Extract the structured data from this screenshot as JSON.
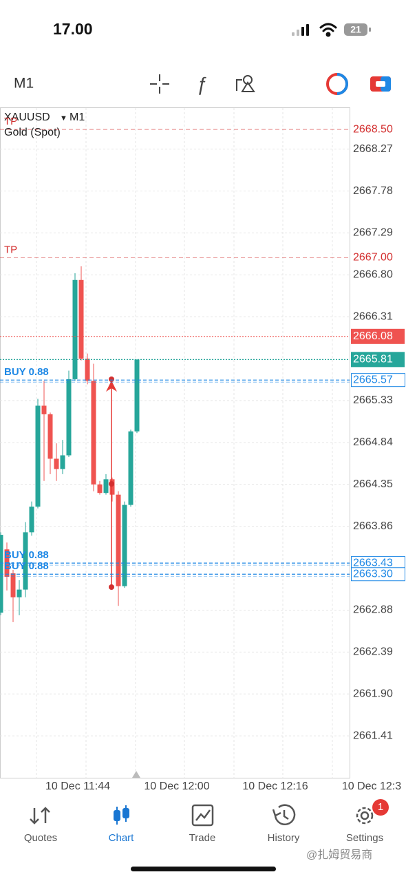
{
  "status_bar": {
    "time": "17.00",
    "battery": "21"
  },
  "toolbar": {
    "timeframe": "M1"
  },
  "chart_data": {
    "type": "candlestick",
    "symbol": "XAUUSD",
    "timeframe": "M1",
    "description": "Gold (Spot)",
    "ylim": [
      2660.92,
      2668.75
    ],
    "yticks": [
      2668.27,
      2667.78,
      2667.29,
      {
        "value": 2666.8,
        "label": "2666.80"
      },
      2666.31,
      2665.33,
      2664.84,
      2664.35,
      2663.86,
      2662.88,
      2662.39,
      {
        "value": 2661.9,
        "label": "2661.90"
      },
      2661.41
    ],
    "time_labels": [
      "10 Dec 11:44",
      "10 Dec 12:00",
      "10 Dec 12:16",
      "10 Dec 12:3"
    ],
    "grid": true,
    "up_color": "#26a69a",
    "down_color": "#ef5350",
    "open": [
      2662.85,
      2663.59,
      2663.31,
      2663.03,
      2663.12,
      2663.79,
      2664.09,
      2665.27,
      2665.17,
      2664.65,
      2664.53,
      2664.69,
      2665.58,
      2666.74,
      2665.82,
      2665.56,
      2664.35,
      2664.25,
      2664.41,
      2664.23,
      2663.16,
      2664.11,
      2664.97
    ],
    "high": [
      2663.79,
      2663.67,
      2663.35,
      2663.23,
      2663.91,
      2664.15,
      2665.35,
      2665.56,
      2665.19,
      2664.83,
      2664.87,
      2665.68,
      2666.82,
      2666.9,
      2665.88,
      2665.76,
      2664.39,
      2664.47,
      2664.43,
      2664.27,
      2664.15,
      2664.99,
      2665.81
    ],
    "low": [
      2662.82,
      2663.11,
      2662.74,
      2662.82,
      2663.03,
      2663.75,
      2664.07,
      2664.39,
      2664.47,
      2664.39,
      2664.47,
      2664.67,
      2665.56,
      2665.8,
      2665.52,
      2664.27,
      2664.23,
      2664.23,
      2664.15,
      2662.93,
      2663.14,
      2664.09,
      2664.95
    ],
    "close": [
      2663.76,
      2663.27,
      2663.03,
      2663.12,
      2663.79,
      2664.09,
      2665.27,
      2665.17,
      2664.65,
      2664.53,
      2664.69,
      2665.58,
      2666.74,
      2665.82,
      2665.56,
      2664.35,
      2664.25,
      2664.41,
      2664.23,
      2663.16,
      2664.11,
      2664.97,
      2665.81
    ],
    "price_lines": [
      {
        "label": "TP",
        "value": 2668.5,
        "value_label": "2668.50",
        "color": "#d32f2f",
        "style": "tp"
      },
      {
        "label": "TP",
        "value": 2667,
        "value_label": "2667.00",
        "color": "#d32f2f",
        "style": "tp"
      },
      {
        "value": 2666.08,
        "color": "#ef5350",
        "style": "filled"
      },
      {
        "value": 2665.81,
        "color": "#26a69a",
        "style": "filled"
      },
      {
        "label": "BUY 0.88",
        "value": 2665.57,
        "color": "#1e88e5",
        "style": "order"
      },
      {
        "label": "BUY 0.88",
        "value": 2663.43,
        "color": "#1e88e5",
        "style": "order"
      },
      {
        "label": "BUY 0.88",
        "value": 2663.3,
        "value_label": "2663.30",
        "color": "#1e88e5",
        "style": "order"
      }
    ]
  },
  "bottom_nav": {
    "items": [
      {
        "label": "Quotes"
      },
      {
        "label": "Chart",
        "active": true
      },
      {
        "label": "Trade"
      },
      {
        "label": "History"
      },
      {
        "label": "Settings"
      }
    ],
    "badge": "1"
  },
  "watermark": "@扎姆贸易商"
}
